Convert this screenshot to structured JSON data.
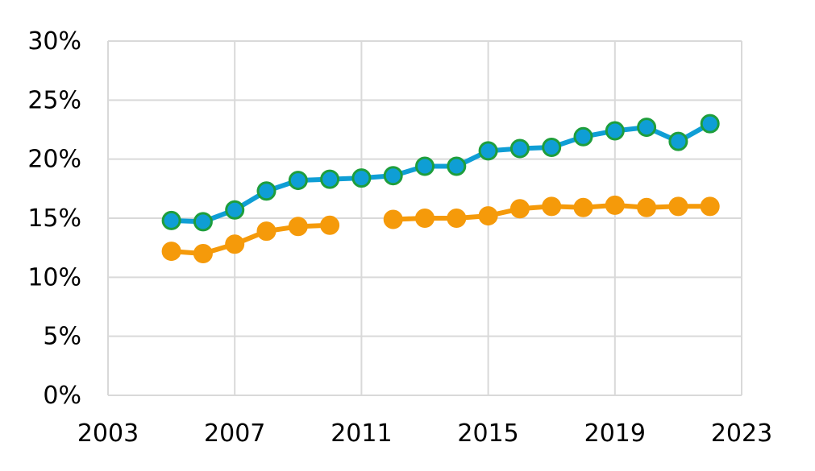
{
  "chart_data": {
    "type": "line",
    "title": "",
    "xlabel": "",
    "ylabel": "",
    "xlim": [
      2003,
      2023
    ],
    "ylim": [
      0,
      30
    ],
    "x_ticks": [
      2003,
      2007,
      2011,
      2015,
      2019,
      2023
    ],
    "x_tick_labels": [
      "2003",
      "2007",
      "2011",
      "2015",
      "2019",
      "2023"
    ],
    "y_ticks": [
      0,
      5,
      10,
      15,
      20,
      25,
      30
    ],
    "y_tick_labels": [
      "0%",
      "5%",
      "10%",
      "15%",
      "20%",
      "25%",
      "30%"
    ],
    "grid": true,
    "legend": "none",
    "colors": {
      "grid": "#d9d9d9",
      "axis": "#d9d9d9"
    },
    "series": [
      {
        "line_color": "#0f9ed5",
        "marker_fill": "#0f9ed5",
        "marker_edge": "#1e9e3c",
        "points": [
          [
            2005,
            14.8
          ],
          [
            2006,
            14.7
          ],
          [
            2007,
            15.7
          ],
          [
            2008,
            17.3
          ],
          [
            2009,
            18.2
          ],
          [
            2010,
            18.3
          ],
          [
            2011,
            18.4
          ],
          [
            2012,
            18.6
          ],
          [
            2013,
            19.4
          ],
          [
            2014,
            19.4
          ],
          [
            2015,
            20.7
          ],
          [
            2016,
            20.9
          ],
          [
            2017,
            21.0
          ],
          [
            2018,
            21.9
          ],
          [
            2019,
            22.4
          ],
          [
            2020,
            22.7
          ],
          [
            2021,
            21.5
          ],
          [
            2022,
            23.0
          ]
        ]
      },
      {
        "line_color": "#f59a0a",
        "marker_fill": "#f59a0a",
        "marker_edge": "#f59a0a",
        "points": [
          [
            2005,
            12.2
          ],
          [
            2006,
            12.0
          ],
          [
            2007,
            12.8
          ],
          [
            2008,
            13.9
          ],
          [
            2009,
            14.3
          ],
          [
            2010,
            14.4
          ],
          [
            2011,
            null
          ],
          [
            2012,
            14.9
          ],
          [
            2013,
            15.0
          ],
          [
            2014,
            15.0
          ],
          [
            2015,
            15.2
          ],
          [
            2016,
            15.8
          ],
          [
            2017,
            16.0
          ],
          [
            2018,
            15.9
          ],
          [
            2019,
            16.1
          ],
          [
            2020,
            15.9
          ],
          [
            2021,
            16.0
          ],
          [
            2022,
            16.0
          ]
        ]
      }
    ]
  }
}
